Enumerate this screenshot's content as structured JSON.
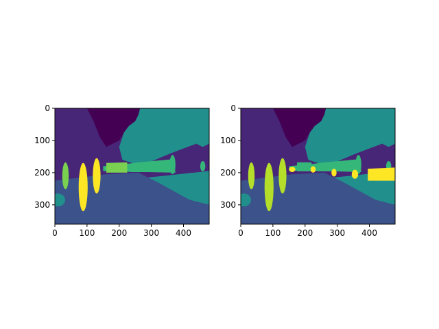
{
  "chart_data": [
    {
      "type": "heatmap",
      "title": "",
      "xlabel": "",
      "ylabel": "",
      "xlim": [
        0,
        480
      ],
      "ylim": [
        360,
        0
      ],
      "xticks": [
        0,
        100,
        200,
        300,
        400
      ],
      "yticks": [
        0,
        100,
        200,
        300
      ],
      "colormap": "viridis",
      "class_colors": {
        "dark_purple": "#440154",
        "purple": "#482677",
        "blue_slate": "#3b528b",
        "teal": "#21908c",
        "green": "#35b779",
        "light_green": "#7ad151",
        "yellow": "#fde725"
      },
      "grid": false
    },
    {
      "type": "heatmap",
      "title": "",
      "xlabel": "",
      "ylabel": "",
      "xlim": [
        0,
        480
      ],
      "ylim": [
        360,
        0
      ],
      "xticks": [
        0,
        100,
        200,
        300,
        400
      ],
      "yticks": [
        0,
        100,
        200,
        300
      ],
      "colormap": "viridis",
      "class_colors": {
        "dark_purple": "#440154",
        "purple": "#482677",
        "blue_slate": "#3b528b",
        "teal": "#21908c",
        "green": "#35b779",
        "light_green": "#b5de2b",
        "yellow": "#fde725"
      },
      "grid": false
    }
  ]
}
